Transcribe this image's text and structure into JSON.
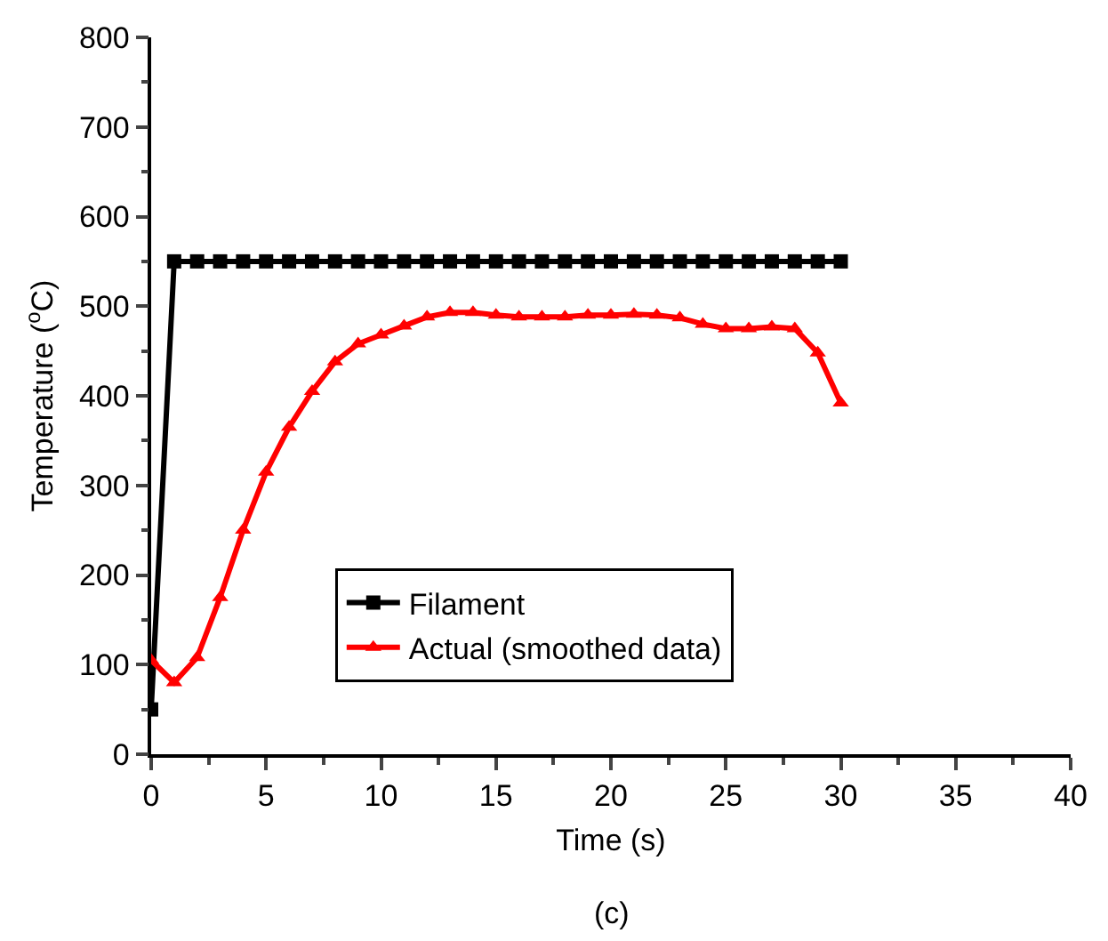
{
  "chart_data": {
    "type": "line",
    "xlabel": "Time (s)",
    "ylabel": "Temperature ($^{o}$C)",
    "annotations": [
      "(c)"
    ],
    "xlim": [
      0,
      40
    ],
    "xticks": [
      0,
      5,
      10,
      15,
      20,
      25,
      30,
      35,
      40
    ],
    "ylim": [
      0,
      800
    ],
    "yticks": [
      0,
      100,
      200,
      300,
      400,
      500,
      600,
      700,
      800
    ],
    "grid": false,
    "legend": "bottom",
    "line_style": "solid",
    "series": [
      {
        "name": "Filament",
        "color": "#000000",
        "marker": "square",
        "x": [
          0,
          1,
          2,
          3,
          4,
          5,
          6,
          7,
          8,
          9,
          10,
          11,
          12,
          13,
          14,
          15,
          16,
          17,
          18,
          19,
          20,
          21,
          22,
          23,
          24,
          25,
          26,
          27,
          28,
          29,
          30
        ],
        "values": [
          50,
          550,
          550,
          550,
          550,
          550,
          550,
          550,
          550,
          550,
          550,
          550,
          550,
          550,
          550,
          550,
          550,
          550,
          550,
          550,
          550,
          550,
          550,
          550,
          550,
          550,
          550,
          550,
          550,
          550,
          550
        ]
      },
      {
        "name": "Actual (smoothed data)",
        "color": "#ff0000",
        "marker": "triangle",
        "x": [
          0,
          1,
          2,
          3,
          4,
          5,
          6,
          7,
          8,
          9,
          10,
          11,
          12,
          13,
          14,
          15,
          16,
          17,
          18,
          19,
          20,
          21,
          22,
          23,
          24,
          25,
          26,
          27,
          28,
          29,
          30
        ],
        "values": [
          105,
          80,
          108,
          175,
          250,
          315,
          365,
          405,
          438,
          458,
          468,
          478,
          488,
          493,
          493,
          490,
          488,
          488,
          488,
          490,
          490,
          491,
          490,
          487,
          480,
          475,
          475,
          477,
          475,
          448,
          392
        ]
      }
    ]
  }
}
